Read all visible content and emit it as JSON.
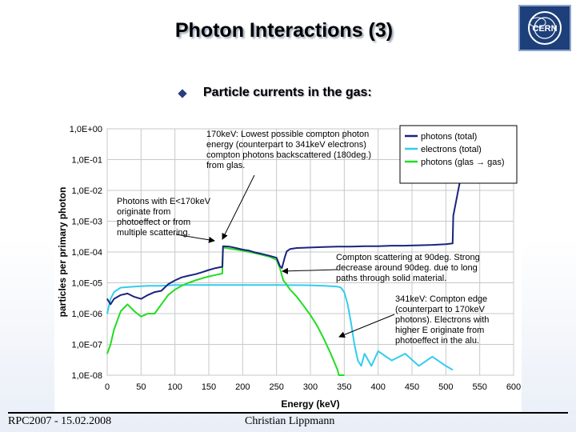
{
  "slide": {
    "title": "Photon Interactions (3)",
    "bullet": "Particle currents in the gas:",
    "footer_left": "RPC2007 - 15.02.2008",
    "footer_center": "Christian Lippmann",
    "logo_text": "CERN"
  },
  "chart_data": {
    "type": "line",
    "xlabel": "Energy (keV)",
    "ylabel": "particles per primary photon",
    "xlim": [
      0,
      600
    ],
    "ylim_log10": [
      -8,
      0
    ],
    "log_y": true,
    "grid": true,
    "legend_position": "top-right",
    "x_ticks": [
      0,
      50,
      100,
      150,
      200,
      250,
      300,
      350,
      400,
      450,
      500,
      550,
      600
    ],
    "y_ticks": [
      "1,0E+00",
      "1,0E-01",
      "1,0E-02",
      "1,0E-03",
      "1,0E-04",
      "1,0E-05",
      "1,0E-06",
      "1,0E-07",
      "1,0E-08"
    ],
    "series": [
      {
        "name": "photons (total)",
        "color": "#1a237e",
        "x": [
          0,
          5,
          10,
          20,
          30,
          40,
          50,
          60,
          70,
          80,
          90,
          100,
          110,
          120,
          130,
          140,
          150,
          160,
          170,
          171,
          180,
          190,
          200,
          210,
          220,
          230,
          240,
          250,
          255,
          258,
          262,
          265,
          270,
          280,
          300,
          320,
          340,
          360,
          380,
          400,
          420,
          440,
          460,
          480,
          500,
          510,
          511,
          520,
          530,
          540,
          550,
          560,
          562
        ],
        "y": [
          3e-06,
          2e-06,
          3e-06,
          4e-06,
          4.5e-06,
          3.5e-06,
          3e-06,
          4e-06,
          5e-06,
          5.5e-06,
          9e-06,
          1.2e-05,
          1.5e-05,
          1.7e-05,
          1.9e-05,
          2.2e-05,
          2.6e-05,
          3e-05,
          3.3e-05,
          0.000155,
          0.00015,
          0.000135,
          0.00012,
          0.00011,
          9.5e-05,
          8.5e-05,
          7.5e-05,
          6.5e-05,
          3.5e-05,
          3e-05,
          6.5e-05,
          0.000105,
          0.000125,
          0.000135,
          0.00014,
          0.000145,
          0.00015,
          0.00015,
          0.000155,
          0.000155,
          0.00016,
          0.00016,
          0.000165,
          0.00017,
          0.00018,
          0.00019,
          0.0015,
          0.016,
          0.06,
          0.15,
          0.25,
          0.35,
          0.4
        ]
      },
      {
        "name": "electrons (total)",
        "color": "#33ccee",
        "x": [
          0,
          5,
          10,
          20,
          40,
          60,
          80,
          100,
          150,
          200,
          250,
          300,
          320,
          340,
          345,
          350,
          355,
          360,
          365,
          370,
          375,
          380,
          390,
          400,
          420,
          440,
          460,
          480,
          500,
          510
        ],
        "y": [
          1e-06,
          3e-06,
          5e-06,
          7e-06,
          7.5e-06,
          8e-06,
          8e-06,
          8.5e-06,
          8.5e-06,
          8.5e-06,
          8.5e-06,
          8.3e-06,
          8e-06,
          7.5e-06,
          7e-06,
          5e-06,
          2e-06,
          5e-07,
          1e-07,
          3e-08,
          2e-08,
          5e-08,
          2e-08,
          6e-08,
          3e-08,
          5e-08,
          2e-08,
          4e-08,
          2e-08,
          1.5e-08
        ]
      },
      {
        "name": "photons (glas → gas)",
        "color": "#22dd22",
        "x": [
          0,
          5,
          10,
          20,
          30,
          40,
          50,
          60,
          70,
          80,
          90,
          100,
          110,
          120,
          130,
          140,
          150,
          160,
          170,
          171,
          180,
          200,
          220,
          240,
          250,
          255,
          260,
          263,
          270,
          280,
          290,
          300,
          310,
          320,
          330,
          340,
          342,
          350
        ],
        "y": [
          5e-08,
          1e-07,
          3e-07,
          1.2e-06,
          2e-06,
          1.2e-06,
          8e-07,
          1e-06,
          1e-06,
          2e-06,
          4e-06,
          6e-06,
          8e-06,
          1e-05,
          1.2e-05,
          1.4e-05,
          1.6e-05,
          1.8e-05,
          2e-05,
          0.00014,
          0.00013,
          0.00011,
          9e-05,
          7e-05,
          5.5e-05,
          3e-05,
          1.2e-05,
          1e-05,
          6e-06,
          3.5e-06,
          1.8e-06,
          9e-07,
          4e-07,
          1.5e-07,
          5e-08,
          1.5e-08,
          1e-08,
          1e-08
        ]
      }
    ],
    "annotations": [
      "170keV: Lowest possible compton photon\nenergy (counterpart to 341keV electrons)\ncompton photons backscattered (180deg.)\nfrom glas.",
      "Photons with E<170keV\noriginate from\nphotoeffect or from\nmultiple scattering.",
      "Compton scattering at 90deg. Strong\ndecrease around 90deg. due to long\npaths through solid material.",
      "341keV: Compton edge\n(counterpart to 170keV\nphotons). Electrons with\nhigher E originate from\nphotoeffect in the alu."
    ]
  }
}
